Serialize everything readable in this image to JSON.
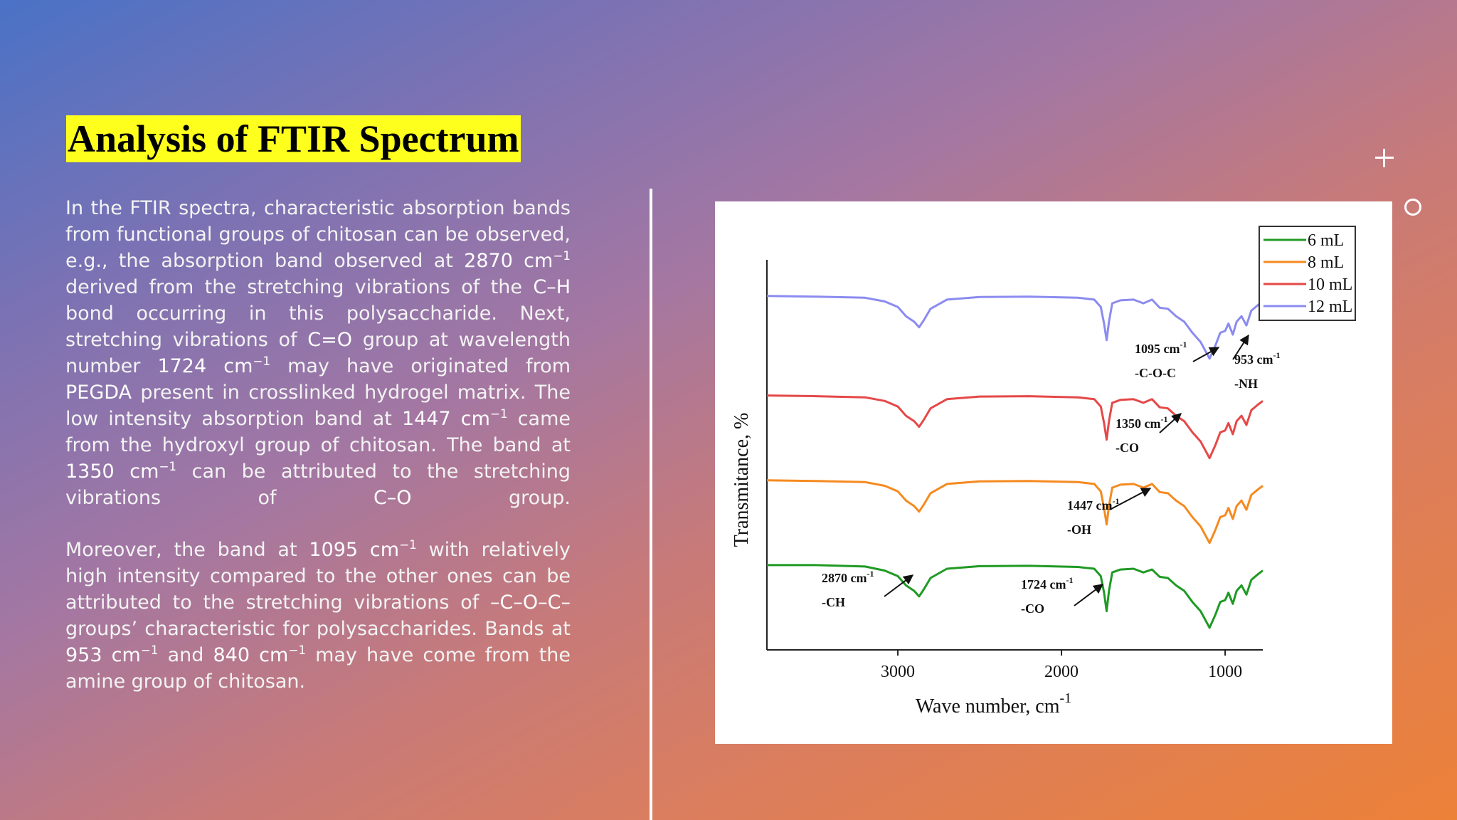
{
  "slide": {
    "title": "Analysis of FTIR Spectrum",
    "paragraph1": [
      {
        "t": "In the FTIR spectra, characteristic absorption bands from functional groups of chitosan can be observed, e.g., the absorption band observed at "
      },
      {
        "t": "2870 cm",
        "hl": true
      },
      {
        "t": "−1",
        "hl": true,
        "sup": true
      },
      {
        "t": " derived from the stretching vibrations of the "
      },
      {
        "t": "C–H",
        "hl": true
      },
      {
        "t": " bond occurring in this polysaccharide. Next, stretching vibrations of "
      },
      {
        "t": "C=O",
        "hl": true
      },
      {
        "t": " group at wavelength number "
      },
      {
        "t": "1724 cm",
        "hl": true
      },
      {
        "t": "−1",
        "hl": true,
        "sup": true
      },
      {
        "t": " may have originated from "
      },
      {
        "t": "PEGDA",
        "hl": true
      },
      {
        "t": " present in crosslinked hydrogel matrix. The low intensity absorption band at "
      },
      {
        "t": "1447 cm",
        "hl": true
      },
      {
        "t": "−1",
        "hl": true,
        "sup": true
      },
      {
        "t": " came from the hydroxyl group of chitosan. The band at "
      },
      {
        "t": "1350 cm",
        "hl": true
      },
      {
        "t": "−1",
        "hl": true,
        "sup": true
      },
      {
        "t": " can be attributed to the stretching vibrations of "
      },
      {
        "t": "C–O",
        "hl": true
      },
      {
        "t": " group."
      }
    ],
    "paragraph2": [
      {
        "t": "Moreover, the band at "
      },
      {
        "t": "1095 cm",
        "hl": true
      },
      {
        "t": "−1",
        "hl": true,
        "sup": true
      },
      {
        "t": " with relatively high intensity compared to the other ones can be attributed to the stretching vibrations of "
      },
      {
        "t": "–C–O–C–",
        "hl": true
      },
      {
        "t": " groups’ characteristic for polysaccharides. Bands at "
      },
      {
        "t": "953 cm",
        "hl": true
      },
      {
        "t": "−1",
        "hl": true,
        "sup": true
      },
      {
        "t": " and "
      },
      {
        "t": "840 cm",
        "hl": true
      },
      {
        "t": "−1",
        "hl": true,
        "sup": true
      },
      {
        "t": " may have come from the amine group of chitosan."
      }
    ]
  },
  "chart_data": {
    "type": "line",
    "title": "",
    "xlabel": "Wave number, cm",
    "xlabel_sup": "-1",
    "ylabel": "Transmitance, %",
    "x_reversed": true,
    "xlim": [
      3800,
      770
    ],
    "xticks": [
      3000,
      2000,
      1000
    ],
    "ylim": [
      0,
      10
    ],
    "grid": false,
    "legend_position": "top-right",
    "series": [
      {
        "name": "6 mL",
        "color": "#1f9a24",
        "points": [
          [
            3800,
            2.3
          ],
          [
            3500,
            2.3
          ],
          [
            3200,
            2.26
          ],
          [
            3080,
            2.15
          ],
          [
            3000,
            2.0
          ],
          [
            2950,
            1.75
          ],
          [
            2900,
            1.6
          ],
          [
            2870,
            1.45
          ],
          [
            2840,
            1.65
          ],
          [
            2800,
            1.95
          ],
          [
            2700,
            2.2
          ],
          [
            2500,
            2.27
          ],
          [
            2200,
            2.28
          ],
          [
            1900,
            2.25
          ],
          [
            1800,
            2.2
          ],
          [
            1760,
            2.0
          ],
          [
            1740,
            1.55
          ],
          [
            1724,
            1.05
          ],
          [
            1710,
            1.6
          ],
          [
            1690,
            2.1
          ],
          [
            1640,
            2.18
          ],
          [
            1560,
            2.2
          ],
          [
            1500,
            2.1
          ],
          [
            1447,
            2.18
          ],
          [
            1400,
            1.98
          ],
          [
            1350,
            1.95
          ],
          [
            1300,
            1.75
          ],
          [
            1250,
            1.6
          ],
          [
            1200,
            1.3
          ],
          [
            1150,
            1.05
          ],
          [
            1095,
            0.6
          ],
          [
            1060,
            0.95
          ],
          [
            1030,
            1.3
          ],
          [
            1000,
            1.35
          ],
          [
            980,
            1.55
          ],
          [
            953,
            1.25
          ],
          [
            930,
            1.6
          ],
          [
            900,
            1.75
          ],
          [
            870,
            1.5
          ],
          [
            840,
            1.9
          ],
          [
            800,
            2.05
          ],
          [
            770,
            2.15
          ]
        ]
      },
      {
        "name": "8 mL",
        "color": "#f58a1f",
        "points": [
          [
            3800,
            4.6
          ],
          [
            3500,
            4.58
          ],
          [
            3200,
            4.55
          ],
          [
            3080,
            4.45
          ],
          [
            3000,
            4.3
          ],
          [
            2950,
            4.05
          ],
          [
            2900,
            3.9
          ],
          [
            2870,
            3.75
          ],
          [
            2840,
            3.95
          ],
          [
            2800,
            4.25
          ],
          [
            2700,
            4.5
          ],
          [
            2500,
            4.57
          ],
          [
            2200,
            4.58
          ],
          [
            1900,
            4.55
          ],
          [
            1800,
            4.5
          ],
          [
            1760,
            4.3
          ],
          [
            1740,
            3.85
          ],
          [
            1724,
            3.4
          ],
          [
            1710,
            3.9
          ],
          [
            1690,
            4.4
          ],
          [
            1640,
            4.48
          ],
          [
            1560,
            4.5
          ],
          [
            1500,
            4.4
          ],
          [
            1447,
            4.5
          ],
          [
            1400,
            4.28
          ],
          [
            1350,
            4.25
          ],
          [
            1300,
            4.05
          ],
          [
            1250,
            3.9
          ],
          [
            1200,
            3.6
          ],
          [
            1150,
            3.35
          ],
          [
            1095,
            2.9
          ],
          [
            1060,
            3.25
          ],
          [
            1030,
            3.6
          ],
          [
            1000,
            3.65
          ],
          [
            980,
            3.85
          ],
          [
            953,
            3.55
          ],
          [
            930,
            3.9
          ],
          [
            900,
            4.05
          ],
          [
            870,
            3.8
          ],
          [
            840,
            4.2
          ],
          [
            800,
            4.35
          ],
          [
            770,
            4.45
          ]
        ]
      },
      {
        "name": "10 mL",
        "color": "#e54848",
        "points": [
          [
            3800,
            6.9
          ],
          [
            3500,
            6.88
          ],
          [
            3200,
            6.85
          ],
          [
            3080,
            6.75
          ],
          [
            3000,
            6.6
          ],
          [
            2950,
            6.35
          ],
          [
            2900,
            6.2
          ],
          [
            2870,
            6.05
          ],
          [
            2840,
            6.25
          ],
          [
            2800,
            6.55
          ],
          [
            2700,
            6.8
          ],
          [
            2500,
            6.87
          ],
          [
            2200,
            6.88
          ],
          [
            1900,
            6.85
          ],
          [
            1800,
            6.8
          ],
          [
            1760,
            6.6
          ],
          [
            1740,
            6.15
          ],
          [
            1724,
            5.7
          ],
          [
            1710,
            6.2
          ],
          [
            1690,
            6.7
          ],
          [
            1640,
            6.78
          ],
          [
            1560,
            6.8
          ],
          [
            1500,
            6.7
          ],
          [
            1447,
            6.8
          ],
          [
            1400,
            6.58
          ],
          [
            1350,
            6.55
          ],
          [
            1300,
            6.35
          ],
          [
            1250,
            6.2
          ],
          [
            1200,
            5.9
          ],
          [
            1150,
            5.65
          ],
          [
            1095,
            5.2
          ],
          [
            1060,
            5.55
          ],
          [
            1030,
            5.9
          ],
          [
            1000,
            5.95
          ],
          [
            980,
            6.15
          ],
          [
            953,
            5.85
          ],
          [
            930,
            6.2
          ],
          [
            900,
            6.35
          ],
          [
            870,
            6.1
          ],
          [
            840,
            6.5
          ],
          [
            800,
            6.65
          ],
          [
            770,
            6.75
          ]
        ]
      },
      {
        "name": "12 mL",
        "color": "#8b8bf0",
        "points": [
          [
            3800,
            9.6
          ],
          [
            3500,
            9.58
          ],
          [
            3200,
            9.55
          ],
          [
            3080,
            9.45
          ],
          [
            3000,
            9.3
          ],
          [
            2950,
            9.05
          ],
          [
            2900,
            8.9
          ],
          [
            2870,
            8.75
          ],
          [
            2840,
            8.95
          ],
          [
            2800,
            9.25
          ],
          [
            2700,
            9.5
          ],
          [
            2500,
            9.57
          ],
          [
            2200,
            9.58
          ],
          [
            1900,
            9.55
          ],
          [
            1800,
            9.5
          ],
          [
            1760,
            9.3
          ],
          [
            1740,
            8.85
          ],
          [
            1724,
            8.4
          ],
          [
            1710,
            8.9
          ],
          [
            1690,
            9.4
          ],
          [
            1640,
            9.48
          ],
          [
            1560,
            9.5
          ],
          [
            1500,
            9.4
          ],
          [
            1447,
            9.5
          ],
          [
            1400,
            9.28
          ],
          [
            1350,
            9.25
          ],
          [
            1300,
            9.05
          ],
          [
            1250,
            8.9
          ],
          [
            1200,
            8.6
          ],
          [
            1150,
            8.35
          ],
          [
            1095,
            7.9
          ],
          [
            1060,
            8.25
          ],
          [
            1030,
            8.6
          ],
          [
            1000,
            8.65
          ],
          [
            980,
            8.85
          ],
          [
            953,
            8.55
          ],
          [
            930,
            8.9
          ],
          [
            900,
            9.05
          ],
          [
            870,
            8.8
          ],
          [
            840,
            9.2
          ],
          [
            800,
            9.35
          ],
          [
            770,
            9.45
          ]
        ]
      }
    ],
    "annotations": [
      {
        "id": "ch",
        "wn": "2870 cm",
        "sup": "-1",
        "group": "-CH"
      },
      {
        "id": "co1724",
        "wn": "1724 cm",
        "sup": "-1",
        "group": "-CO"
      },
      {
        "id": "oh",
        "wn": "1447 cm",
        "sup": "-1",
        "group": "-OH"
      },
      {
        "id": "co1350",
        "wn": "1350 cm",
        "sup": "-1",
        "group": "-CO"
      },
      {
        "id": "coc",
        "wn": "1095 cm",
        "sup": "-1",
        "group": "-C-O-C"
      },
      {
        "id": "nh",
        "wn": "953 cm",
        "sup": "-1",
        "group": "-NH"
      }
    ]
  }
}
